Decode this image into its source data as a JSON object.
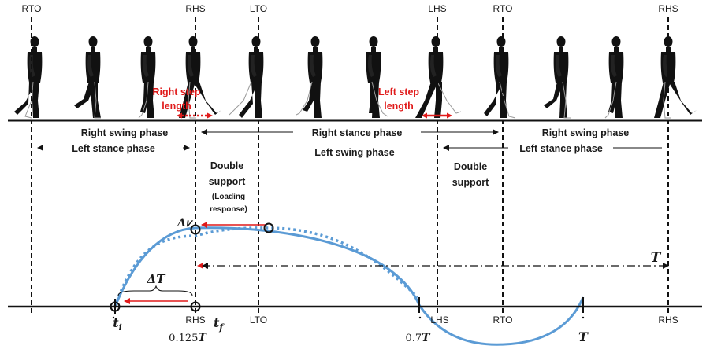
{
  "events_top": {
    "rto_1": "RTO",
    "rhs_1": "RHS",
    "lto": "LTO",
    "lhs": "LHS",
    "rto_2": "RTO",
    "rhs_2": "RHS"
  },
  "step_labels": {
    "right_step_line1": "Right step",
    "right_step_line2": "length",
    "left_step_line1": "Left step",
    "left_step_line2": "length"
  },
  "phases": {
    "right_swing_1": "Right swing phase",
    "left_stance_1": "Left stance phase",
    "right_stance": "Right stance phase",
    "left_swing": "Left swing phase",
    "right_swing_2": "Right swing phase",
    "left_stance_2": "Left stance phase"
  },
  "double_support_1": {
    "line1": "Double",
    "line2": "support",
    "sub1": "(Loading",
    "sub2": "response)"
  },
  "double_support_2": {
    "line1": "Double",
    "line2": "support"
  },
  "math": {
    "delta_v": "Δ𝜈",
    "delta_t": "ΔT",
    "period": "T",
    "t_i": "t",
    "t_i_sub": "i",
    "t_f": "t",
    "t_f_sub": "f"
  },
  "axis_labels": {
    "rhs": "RHS",
    "rhs_value": "0.125",
    "rhs_value_sym": "T",
    "lto": "LTO",
    "lhs": "LHS",
    "lhs_value": "0.7",
    "lhs_value_sym": "T",
    "rto": "RTO",
    "end_value": "T",
    "rhs_end": "RHS"
  },
  "colors": {
    "curve": "#5b9bd5",
    "red": "#e01a1a",
    "ink": "#111111"
  }
}
